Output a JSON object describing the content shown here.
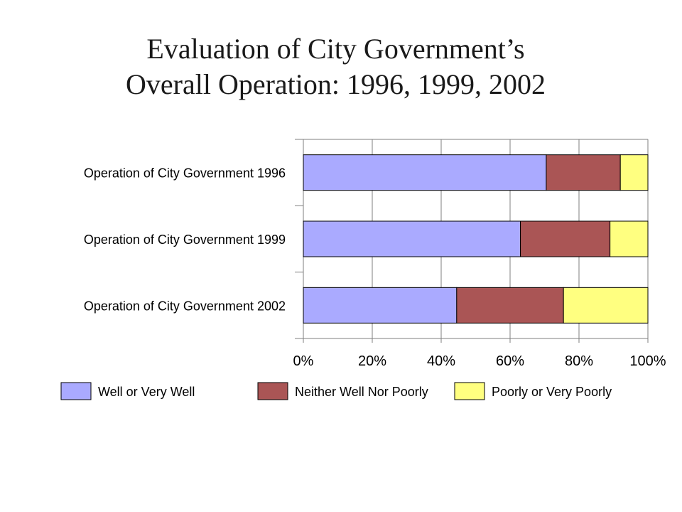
{
  "title": {
    "line1": "Evaluation of City Government’s",
    "line2": "Overall Operation: 1996, 1999, 2002"
  },
  "chart_data": {
    "type": "bar",
    "orientation": "horizontal",
    "stacked": "percent",
    "categories": [
      "Operation of City Government 1996",
      "Operation of City Government 1999",
      "Operation of City Government 2002"
    ],
    "series": [
      {
        "name": "Well or Very Well",
        "color": "#aaaaff",
        "values": [
          70.5,
          63,
          44.5
        ]
      },
      {
        "name": "Neither Well Nor Poorly",
        "color": "#aa5555",
        "values": [
          21.5,
          26,
          31
        ]
      },
      {
        "name": "Poorly or Very Poorly",
        "color": "#ffff80",
        "values": [
          8,
          11,
          24.5
        ]
      }
    ],
    "xlim": [
      0,
      100
    ],
    "xticks": [
      "0%",
      "20%",
      "40%",
      "60%",
      "80%",
      "100%"
    ],
    "grid": "vertical",
    "legend": "bottom"
  }
}
